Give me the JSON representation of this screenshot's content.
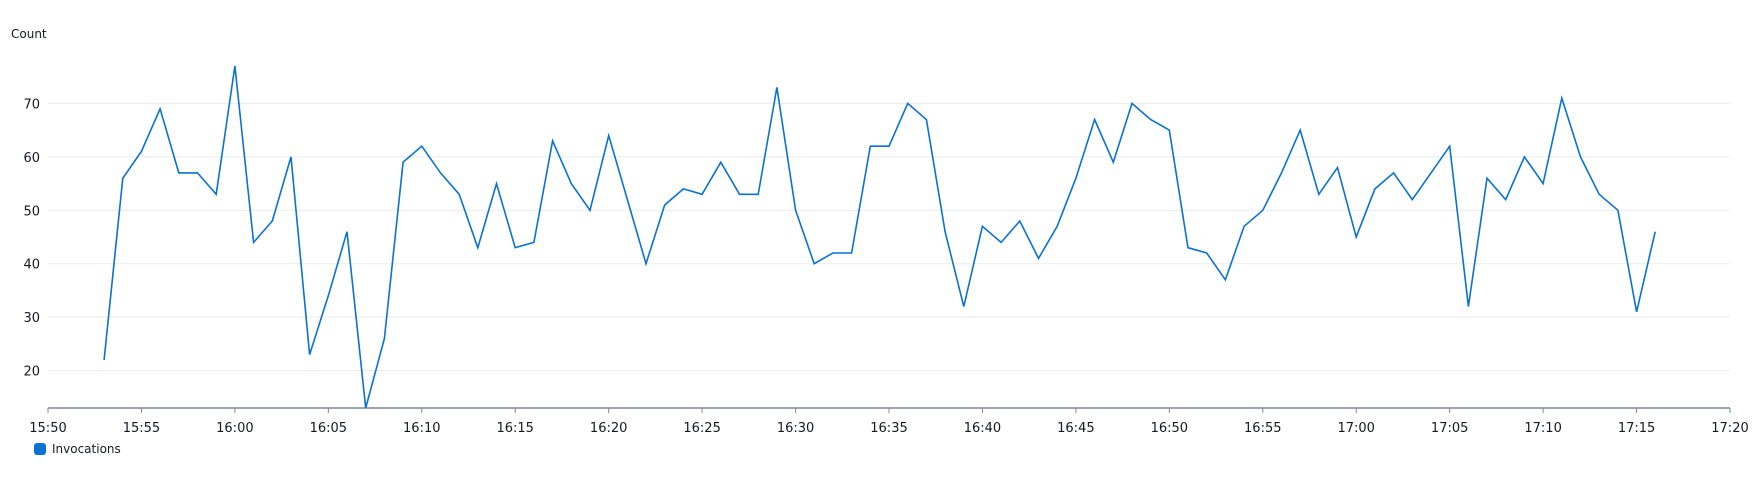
{
  "chart_data": {
    "type": "line",
    "ylabel": "Count",
    "xlabel": "",
    "ylim": [
      13,
      80
    ],
    "yticks": [
      20,
      30,
      40,
      50,
      60,
      70
    ],
    "xlim": [
      "15:50",
      "17:20"
    ],
    "xticks": [
      "15:50",
      "15:55",
      "16:00",
      "16:05",
      "16:10",
      "16:15",
      "16:20",
      "16:25",
      "16:30",
      "16:35",
      "16:40",
      "16:45",
      "16:50",
      "16:55",
      "17:00",
      "17:05",
      "17:10",
      "17:15",
      "17:20"
    ],
    "grid": true,
    "legend_position": "bottom-left",
    "series": [
      {
        "name": "Invocations",
        "color": "#0972d3",
        "x": [
          "15:53",
          "15:54",
          "15:55",
          "15:56",
          "15:57",
          "15:58",
          "15:59",
          "16:00",
          "16:01",
          "16:02",
          "16:03",
          "16:04",
          "16:05",
          "16:06",
          "16:07",
          "16:08",
          "16:09",
          "16:10",
          "16:11",
          "16:12",
          "16:13",
          "16:14",
          "16:15",
          "16:16",
          "16:17",
          "16:18",
          "16:19",
          "16:20",
          "16:21",
          "16:22",
          "16:23",
          "16:24",
          "16:25",
          "16:26",
          "16:27",
          "16:28",
          "16:29",
          "16:30",
          "16:31",
          "16:32",
          "16:33",
          "16:34",
          "16:35",
          "16:36",
          "16:37",
          "16:38",
          "16:39",
          "16:40",
          "16:41",
          "16:42",
          "16:43",
          "16:44",
          "16:45",
          "16:46",
          "16:47",
          "16:48",
          "16:49",
          "16:50",
          "16:51",
          "16:52",
          "16:53",
          "16:54",
          "16:55",
          "16:56",
          "16:57",
          "16:58",
          "16:59",
          "17:00",
          "17:01",
          "17:02",
          "17:03",
          "17:04",
          "17:05",
          "17:06",
          "17:07",
          "17:08",
          "17:09",
          "17:10",
          "17:11",
          "17:12",
          "17:13",
          "17:14",
          "17:15",
          "17:16"
        ],
        "values": [
          22,
          56,
          61,
          69,
          57,
          57,
          53,
          77,
          44,
          48,
          60,
          23,
          34,
          46,
          13,
          26,
          59,
          62,
          57,
          53,
          43,
          55,
          43,
          44,
          63,
          55,
          50,
          64,
          52,
          40,
          51,
          54,
          53,
          59,
          53,
          53,
          73,
          50,
          40,
          42,
          42,
          62,
          62,
          70,
          67,
          46,
          32,
          47,
          44,
          48,
          41,
          47,
          56,
          67,
          59,
          70,
          67,
          65,
          43,
          42,
          37,
          47,
          50,
          57,
          65,
          53,
          58,
          45,
          54,
          57,
          52,
          57,
          62,
          32,
          56,
          52,
          60,
          55,
          71,
          60,
          53,
          50,
          31,
          46
        ]
      }
    ]
  }
}
